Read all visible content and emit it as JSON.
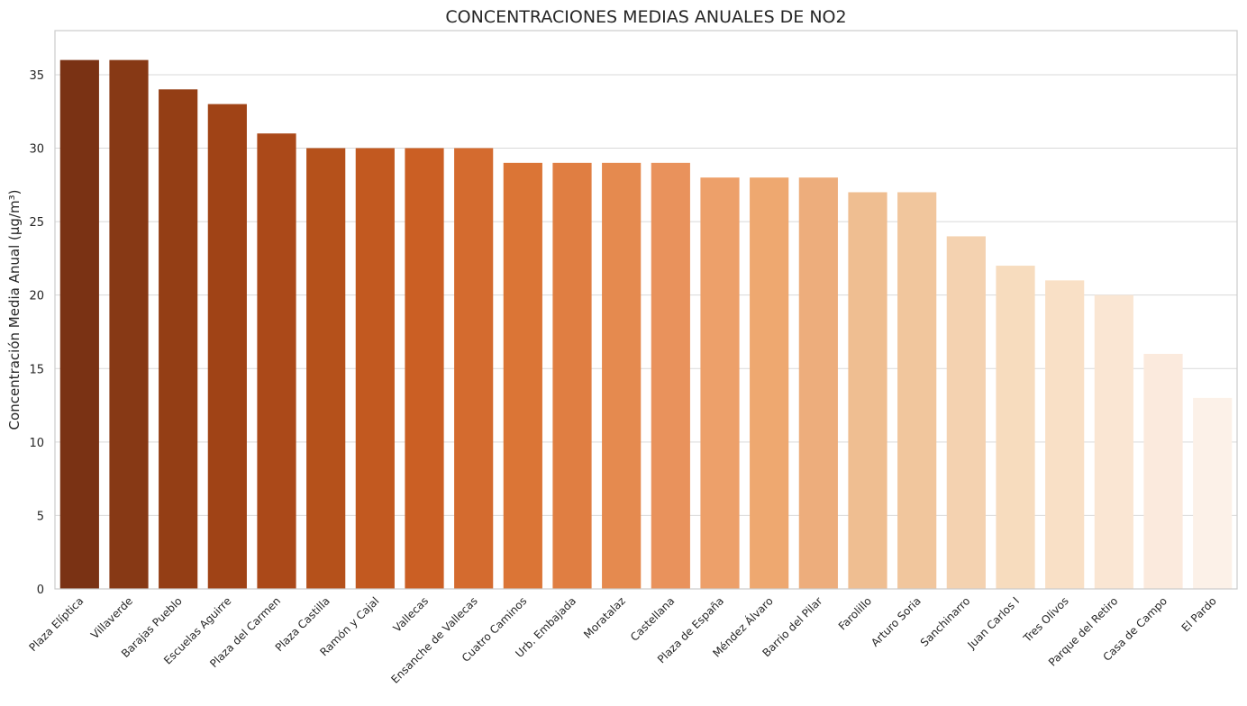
{
  "chart_data": {
    "type": "bar",
    "title": "CONCENTRACIONES MEDIAS ANUALES DE NO2",
    "xlabel": "",
    "ylabel": "Concentración Media Anual (µg/m³)",
    "ylim": [
      0,
      38
    ],
    "yticks": [
      0,
      5,
      10,
      15,
      20,
      25,
      30,
      35
    ],
    "grid": "horizontal",
    "categories": [
      "Plaza Elíptica",
      "Villaverde",
      "Barajas Pueblo",
      "Escuelas Aguirre",
      "Plaza del Carmen",
      "Plaza Castilla",
      "Ramón y Cajal",
      "Vallecas",
      "Ensanche de Vallecas",
      "Cuatro Caminos",
      "Urb. Embajada",
      "Moratalaz",
      "Castellana",
      "Plaza de España",
      "Méndez Álvaro",
      "Barrio del Pilar",
      "Farolillo",
      "Arturo Soria",
      "Sanchinarro",
      "Juan Carlos I",
      "Tres Olivos",
      "Parque del Retiro",
      "Casa de Campo",
      "El Pardo"
    ],
    "values": [
      36,
      36,
      34,
      33,
      31,
      30,
      30,
      30,
      30,
      29,
      29,
      29,
      29,
      28,
      28,
      28,
      27,
      27,
      24,
      22,
      21,
      20,
      16,
      13
    ],
    "colors": [
      "#7a3214",
      "#873915",
      "#943e15",
      "#a04316",
      "#ab4919",
      "#b5511b",
      "#c25920",
      "#cb5f24",
      "#d46b2f",
      "#db7536",
      "#e07e42",
      "#e58a4f",
      "#e9925c",
      "#eda06a",
      "#eea870",
      "#edad7c",
      "#efbe91",
      "#f1c69d",
      "#f4d2b0",
      "#f7dcbe",
      "#f9e0c6",
      "#fae6d3",
      "#fbeadd",
      "#fcf1e8"
    ]
  }
}
